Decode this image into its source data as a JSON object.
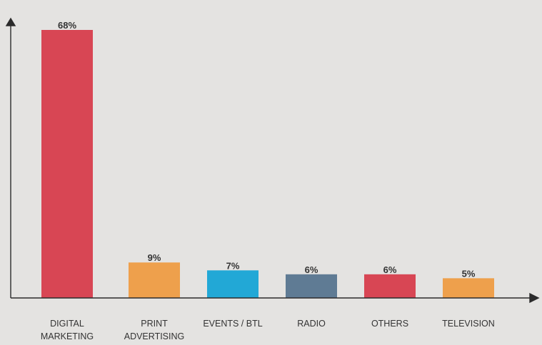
{
  "chart_data": {
    "type": "bar",
    "categories": [
      [
        "DIGITAL",
        "MARKETING"
      ],
      [
        "PRINT",
        "ADVERTISING"
      ],
      [
        "EVENTS / BTL"
      ],
      [
        "RADIO"
      ],
      [
        "OTHERS"
      ],
      [
        "TELEVISION"
      ]
    ],
    "values": [
      68,
      9,
      7,
      6,
      6,
      5
    ],
    "data_labels": [
      "68%",
      "9%",
      "7%",
      "6%",
      "6%",
      "5%"
    ],
    "colors": [
      "#d84654",
      "#eea04c",
      "#22a8d6",
      "#5f7b94",
      "#d84654",
      "#eea04c"
    ],
    "title": "",
    "xlabel": "",
    "ylabel": "",
    "ylim": [
      0,
      68
    ],
    "grid": false,
    "legend": "none"
  }
}
